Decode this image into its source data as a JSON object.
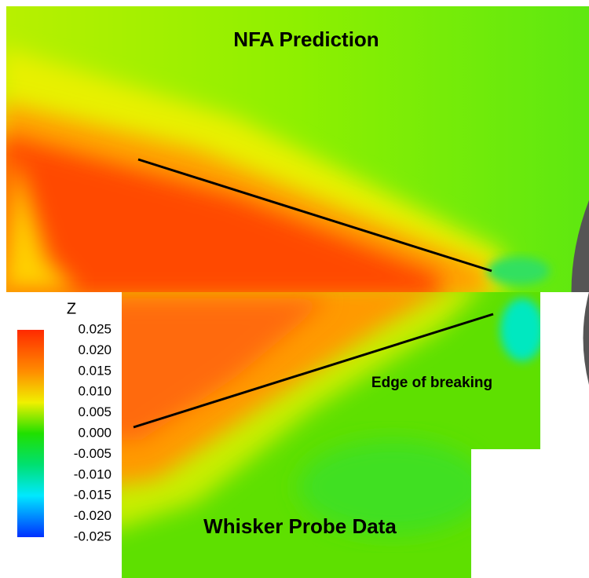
{
  "top_panel": {
    "title": "NFA Prediction"
  },
  "bottom_panel": {
    "title": "Whisker Probe Data",
    "annotation": "Edge of breaking"
  },
  "colorbar": {
    "label": "Z",
    "ticks": [
      "0.025",
      "0.020",
      "0.015",
      "0.010",
      "0.005",
      "0.000",
      "-0.005",
      "-0.010",
      "-0.015",
      "-0.020",
      "-0.025"
    ]
  }
}
